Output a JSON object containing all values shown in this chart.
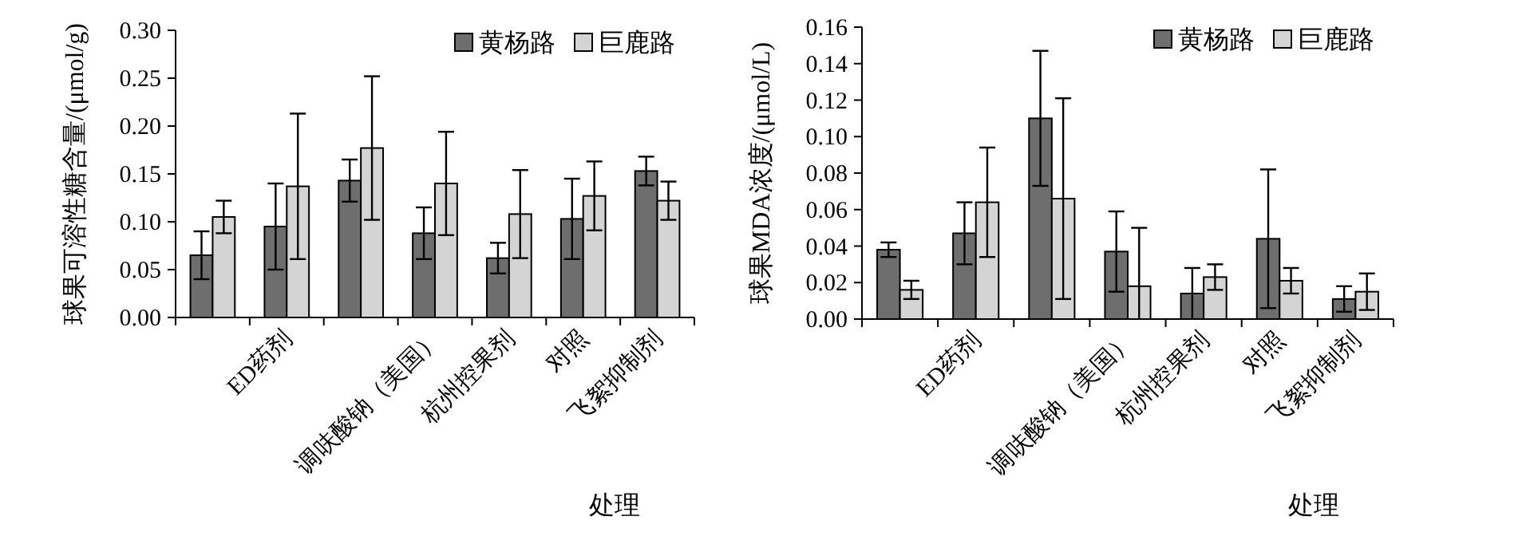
{
  "chart_data": [
    {
      "type": "bar",
      "ylabel": "球果可溶性糖含量/(μmol/g)",
      "xlabel": "处理",
      "categories": [
        null,
        "ED药剂",
        null,
        "调呋酸钠（美国）",
        "杭州控果剂",
        "对照",
        "飞絮抑制剂"
      ],
      "ylim": [
        0,
        0.3
      ],
      "yticks": [
        {
          "value": 0,
          "label": "0.00"
        },
        {
          "value": 0.05,
          "label": "0.05"
        },
        {
          "value": 0.1,
          "label": "0.10"
        },
        {
          "value": 0.15,
          "label": "0.15"
        },
        {
          "value": 0.2,
          "label": "0.20"
        },
        {
          "value": 0.25,
          "label": "0.25"
        },
        {
          "value": 0.3,
          "label": "0.30"
        }
      ],
      "legend": "top right",
      "grid": false,
      "series": [
        {
          "name": "黄杨路",
          "color": "#6e6e6e",
          "values": [
            0.065,
            0.095,
            0.143,
            0.088,
            0.062,
            0.103,
            0.153
          ],
          "errors": [
            0.025,
            0.045,
            0.022,
            0.027,
            0.016,
            0.042,
            0.015
          ]
        },
        {
          "name": "巨鹿路",
          "color": "#d4d4d4",
          "values": [
            0.105,
            0.137,
            0.177,
            0.14,
            0.108,
            0.127,
            0.122
          ],
          "errors": [
            0.017,
            0.076,
            0.075,
            0.054,
            0.046,
            0.036,
            0.02
          ]
        }
      ]
    },
    {
      "type": "bar",
      "ylabel": "球果MDA浓度/(μmol/L)",
      "xlabel": "处理",
      "categories": [
        null,
        "ED药剂",
        null,
        "调呋酸钠（美国）",
        "杭州控果剂",
        "对照",
        "飞絮抑制剂"
      ],
      "ylim": [
        0,
        0.16
      ],
      "yticks": [
        {
          "value": 0,
          "label": "0.00"
        },
        {
          "value": 0.02,
          "label": "0.02"
        },
        {
          "value": 0.04,
          "label": "0.04"
        },
        {
          "value": 0.06,
          "label": "0.06"
        },
        {
          "value": 0.08,
          "label": "0.08"
        },
        {
          "value": 0.1,
          "label": "0.10"
        },
        {
          "value": 0.12,
          "label": "0.12"
        },
        {
          "value": 0.14,
          "label": "0.14"
        },
        {
          "value": 0.16,
          "label": "0.16"
        }
      ],
      "legend": "top right",
      "grid": false,
      "series": [
        {
          "name": "黄杨路",
          "color": "#6e6e6e",
          "values": [
            0.038,
            0.047,
            0.11,
            0.037,
            0.014,
            0.044,
            0.011
          ],
          "errors": [
            0.004,
            0.017,
            0.037,
            0.022,
            0.014,
            0.038,
            0.007
          ]
        },
        {
          "name": "巨鹿路",
          "color": "#d4d4d4",
          "values": [
            0.016,
            0.064,
            0.066,
            0.018,
            0.023,
            0.021,
            0.015
          ],
          "errors": [
            0.005,
            0.03,
            0.055,
            [
              0,
              0.05
            ],
            0.007,
            0.007,
            0.01
          ]
        }
      ]
    }
  ]
}
